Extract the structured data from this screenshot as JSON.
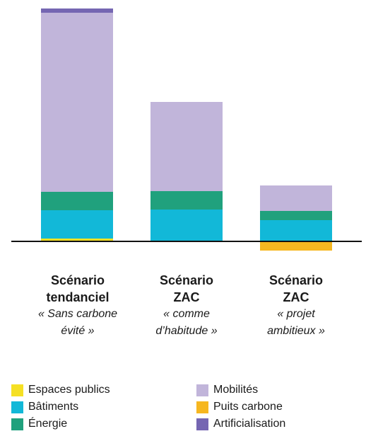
{
  "chart_data": {
    "type": "bar",
    "stacked": true,
    "categories": [
      {
        "title_lines": [
          "Scénario",
          "tendanciel"
        ],
        "subtitle": "« Sans carbone évité »"
      },
      {
        "title_lines": [
          "Scénario",
          "ZAC"
        ],
        "subtitle": "« comme d’habitude »"
      },
      {
        "title_lines": [
          "Scénario",
          "ZAC"
        ],
        "subtitle": "« projet ambitieux »"
      }
    ],
    "series": [
      {
        "name": "Espaces publics",
        "color": "#f5e024",
        "values": [
          4,
          0,
          0
        ]
      },
      {
        "name": "Bâtiments",
        "color": "#12b8d8",
        "values": [
          40,
          45,
          30
        ]
      },
      {
        "name": "Énergie",
        "color": "#20a17d",
        "values": [
          26,
          26,
          13
        ]
      },
      {
        "name": "Mobilités",
        "color": "#c1b5da",
        "values": [
          253,
          126,
          36
        ]
      },
      {
        "name": "Puits carbone",
        "color": "#f6b720",
        "values": [
          0,
          0,
          -13
        ]
      },
      {
        "name": "Artificialisation",
        "color": "#7566b2",
        "values": [
          6,
          0,
          0
        ]
      }
    ],
    "legend": {
      "position": "bottom",
      "columns": [
        [
          "Espaces publics",
          "Bâtiments",
          "Énergie"
        ],
        [
          "Mobilités",
          "Puits carbone",
          "Artificialisation"
        ]
      ]
    },
    "baseline_value": 0,
    "ylim": [
      -13,
      329
    ],
    "axes_visible": false,
    "grid": false
  }
}
